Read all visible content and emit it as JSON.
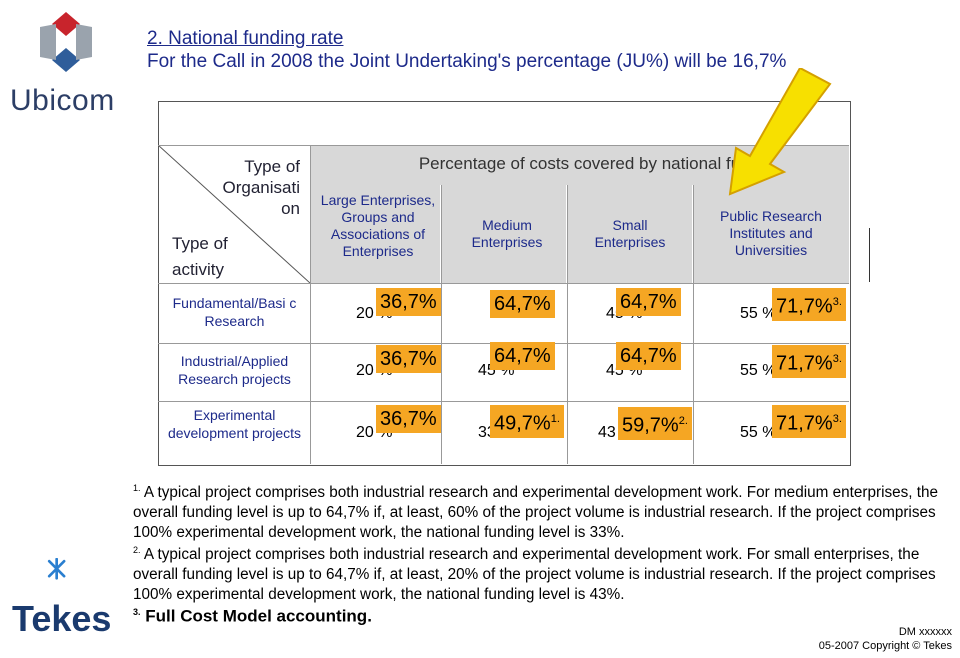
{
  "title": {
    "line1": "2. National funding rate",
    "line2": "For the Call in 2008 the Joint Undertaking's percentage (JU%) will be 16,7%"
  },
  "logos": {
    "ubicom": "Ubicom",
    "tekes": "Tekes"
  },
  "table": {
    "header": "Percentage of costs covered by national fu",
    "corner_top": "Type of Organisati on",
    "corner_bottom": [
      "Type of",
      "activity"
    ],
    "columns": [
      "Large Enterprises, Groups and Associations of Enterprises",
      "Medium Enterprises",
      "Small Enterprises",
      "Public Research Institutes and Universities"
    ],
    "rows": [
      {
        "label": "Fundamental/Basi c Research",
        "cells": [
          {
            "base": "20 %",
            "badge": "36,7%",
            "sup": ""
          },
          {
            "base": "",
            "badge": "64,7%",
            "sup": ""
          },
          {
            "base": "45 %",
            "badge": "64,7%",
            "sup": ""
          },
          {
            "base": "55 %",
            "badge": "71,7%",
            "sup": "3."
          }
        ]
      },
      {
        "label": "Industrial/Applied Research projects",
        "cells": [
          {
            "base": "20 %",
            "badge": "36,7%",
            "sup": ""
          },
          {
            "base": "45 %",
            "badge": "64,7%",
            "sup": ""
          },
          {
            "base": "45 %",
            "badge": "64,7%",
            "sup": ""
          },
          {
            "base": "55 %",
            "badge": "71,7%",
            "sup": "3."
          }
        ]
      },
      {
        "label": "Experimental development projects",
        "cells": [
          {
            "base": "20 %",
            "badge": "36,7%",
            "sup": ""
          },
          {
            "base": "33 %",
            "badge": "49,7%",
            "sup": "1."
          },
          {
            "base": "43 %",
            "badge": "59,7%",
            "sup": "2."
          },
          {
            "base": "55 %",
            "badge": "71,7%",
            "sup": "3."
          }
        ]
      }
    ]
  },
  "notes": {
    "n1_marker": "1.",
    "n1_text": "A typical project comprises both industrial research and experimental development work. For medium enterprises, the overall funding level is up to 64,7% if, at least, 60% of the project volume is industrial research. If the project comprises 100% experimental development work, the national funding level is 33%.",
    "n2_marker": "2.",
    "n2_text": "A typical project comprises both industrial research and experimental development work. For small enterprises, the overall funding level is up to 64,7% if, at least, 20% of the project volume is industrial research. If the project comprises 100% experimental development work, the national funding level is 43%.",
    "n3_marker": "3.",
    "n3_text": "Full Cost Model accounting."
  },
  "footer": {
    "doc": "DM xxxxxx",
    "copyright": "05-2007 Copyright © Tekes"
  },
  "colors": {
    "title": "#1d2a8a",
    "badge": "#f5a623",
    "arrow": "#f7e000",
    "header_band": "#d8d8d8"
  },
  "icons": [
    "ubicom-logo-icon",
    "tekes-logo-icon",
    "highlight-arrow-icon"
  ]
}
